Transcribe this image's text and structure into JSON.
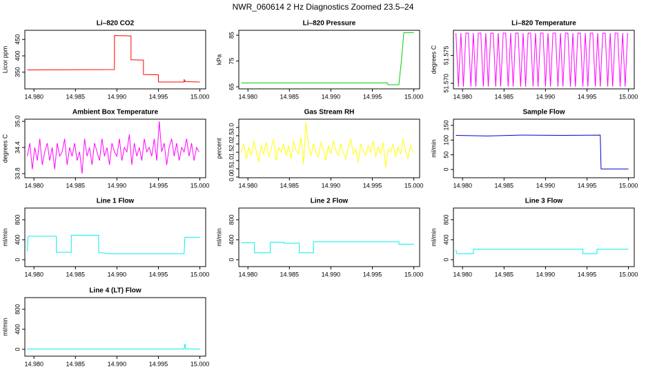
{
  "title": "NWR_060614  2 Hz Diagnostics Zoomed 23.5–24",
  "chart_data": [
    {
      "type": "line",
      "title": "Li–820 CO2",
      "ylabel": "Licor ppm",
      "xlim": [
        14.9789,
        15.0007
      ],
      "xticks": [
        {
          "value": 14.98,
          "label": "14.980"
        },
        14.985,
        {
          "value": 14.99,
          "label": "14.990"
        },
        14.995,
        {
          "value": 15,
          "label": "15.000"
        }
      ],
      "ylim": [
        299,
        478
      ],
      "yticks": [
        350,
        400,
        450
      ],
      "x": [
        14.9792,
        14.9897,
        14.9897,
        14.9917,
        14.9917,
        14.9932,
        14.9932,
        14.995,
        14.995,
        14.9981,
        14.9981,
        14.9982,
        14.9982,
        15.0
      ],
      "series": [
        {
          "color": "#ff0000",
          "values": [
            357,
            358,
            462,
            461,
            388,
            387,
            343,
            342,
            320,
            320,
            327,
            325,
            321,
            320
          ]
        }
      ]
    },
    {
      "type": "line",
      "title": "Li–820 Pressure",
      "ylabel": "kPa",
      "xlim": [
        14.9789,
        15.0007
      ],
      "xticks": [
        {
          "value": 14.98,
          "label": "14.980"
        },
        14.985,
        {
          "value": 14.99,
          "label": "14.990"
        },
        14.995,
        {
          "value": 15,
          "label": "15.000"
        }
      ],
      "ylim": [
        64.2,
        86.9
      ],
      "yticks": [
        65,
        75,
        85
      ],
      "x": [
        14.9792,
        14.9968,
        14.9969,
        14.9982,
        14.9985,
        14.9988,
        15.0
      ],
      "series": [
        {
          "color": "#00cc00",
          "values": [
            66.5,
            66.5,
            65.8,
            65.8,
            75,
            86,
            86
          ]
        }
      ]
    },
    {
      "type": "line",
      "title": "Li–820 Temperature",
      "ylabel": "degrees C",
      "xlim": [
        14.9789,
        15.0007
      ],
      "xticks": [
        {
          "value": 14.98,
          "label": "14.980"
        },
        14.985,
        {
          "value": 14.99,
          "label": "14.990"
        },
        14.995,
        {
          "value": 15,
          "label": "15.000"
        }
      ],
      "ylim": [
        51.569,
        51.5795
      ],
      "yticks": [
        {
          "value": 51.57,
          "label": "51.570"
        },
        51.575
      ],
      "x": [
        14.9792,
        14.9795,
        14.9798,
        14.9801,
        14.9804,
        14.9807,
        14.981,
        14.9813,
        14.9816,
        14.9819,
        14.9822,
        14.9825,
        14.9828,
        14.9831,
        14.9834,
        14.9837,
        14.984,
        14.9843,
        14.9846,
        14.9849,
        14.9852,
        14.9855,
        14.9858,
        14.9861,
        14.9864,
        14.9867,
        14.987,
        14.9873,
        14.9876,
        14.9879,
        14.9882,
        14.9885,
        14.9888,
        14.9891,
        14.9894,
        14.9897,
        14.99,
        14.9903,
        14.9906,
        14.9909,
        14.9912,
        14.9915,
        14.9918,
        14.9921,
        14.9924,
        14.9927,
        14.993,
        14.9933,
        14.9936,
        14.9939,
        14.9942,
        14.9945,
        14.9948,
        14.9951,
        14.9954,
        14.9957,
        14.996,
        14.9963,
        14.9966,
        14.9969,
        14.9972,
        14.9975,
        14.9978,
        14.9981,
        14.9984,
        14.9987,
        14.999,
        14.9993,
        14.9996,
        14.9999
      ],
      "series": [
        {
          "color": "#ff00ff",
          "values": [
            51.579,
            51.5694,
            51.579,
            51.5694,
            51.579,
            51.579,
            51.5694,
            51.579,
            51.5694,
            51.579,
            51.579,
            51.5694,
            51.579,
            51.5694,
            51.579,
            51.579,
            51.5694,
            51.579,
            51.5694,
            51.579,
            51.579,
            51.5694,
            51.579,
            51.5694,
            51.579,
            51.579,
            51.5694,
            51.579,
            51.5694,
            51.579,
            51.579,
            51.5694,
            51.579,
            51.5694,
            51.579,
            51.579,
            51.5694,
            51.579,
            51.5694,
            51.579,
            51.579,
            51.5694,
            51.579,
            51.5694,
            51.579,
            51.579,
            51.5694,
            51.579,
            51.5694,
            51.579,
            51.579,
            51.5694,
            51.579,
            51.5694,
            51.579,
            51.579,
            51.5694,
            51.579,
            51.5694,
            51.579,
            51.579,
            51.5694,
            51.579,
            51.5694,
            51.579,
            51.579,
            51.5694,
            51.579,
            51.5694,
            51.579
          ]
        }
      ]
    },
    {
      "type": "line",
      "title": "Ambient Box Temperature",
      "ylabel": "degrees C",
      "xlim": [
        14.9789,
        15.0007
      ],
      "xticks": [
        {
          "value": 14.98,
          "label": "14.980"
        },
        14.985,
        {
          "value": 14.99,
          "label": "14.990"
        },
        14.995,
        {
          "value": 15,
          "label": "15.000"
        }
      ],
      "ylim": [
        33.705,
        35.05
      ],
      "yticks": [
        33.8,
        34.4,
        {
          "value": 35,
          "label": "35.0"
        }
      ],
      "x": [
        14.9792,
        14.9795,
        14.9798,
        14.9801,
        14.9804,
        14.9807,
        14.981,
        14.9813,
        14.9816,
        14.9819,
        14.9822,
        14.9825,
        14.9828,
        14.9831,
        14.9834,
        14.9837,
        14.984,
        14.9843,
        14.9846,
        14.9849,
        14.9852,
        14.9855,
        14.9858,
        14.9861,
        14.9864,
        14.9867,
        14.987,
        14.9873,
        14.9876,
        14.9879,
        14.9882,
        14.9885,
        14.9888,
        14.9891,
        14.9894,
        14.9897,
        14.99,
        14.9903,
        14.9906,
        14.9909,
        14.9912,
        14.9915,
        14.9918,
        14.9921,
        14.9924,
        14.9927,
        14.993,
        14.9933,
        14.9936,
        14.9939,
        14.9942,
        14.9945,
        14.9948,
        14.9951,
        14.9954,
        14.9957,
        14.996,
        14.9963,
        14.9966,
        14.9969,
        14.9972,
        14.9975,
        14.9978,
        14.9981,
        14.9984,
        14.9987,
        14.999,
        14.9993,
        14.9996,
        14.9999
      ],
      "series": [
        {
          "color": "#ff00ff",
          "values": [
            34.2,
            34.5,
            33.9,
            34.4,
            34.1,
            34.6,
            34.0,
            34.3,
            34.5,
            34.1,
            34.4,
            33.9,
            34.5,
            34.2,
            34.3,
            34.6,
            34.0,
            34.4,
            34.2,
            34.5,
            34.1,
            34.3,
            33.8,
            34.6,
            34.2,
            34.4,
            34.0,
            34.5,
            34.3,
            34.1,
            34.6,
            34.2,
            34.4,
            34.0,
            34.5,
            34.3,
            34.2,
            34.6,
            34.1,
            34.4,
            34.3,
            34.7,
            34.0,
            34.5,
            34.2,
            34.4,
            34.1,
            34.6,
            34.3,
            34.4,
            34.2,
            34.6,
            34.1,
            35.0,
            34.3,
            34.5,
            34.0,
            34.4,
            34.6,
            34.2,
            34.5,
            34.1,
            34.4,
            34.3,
            34.6,
            34.2,
            34.5,
            34.1,
            34.4,
            34.3
          ]
        }
      ]
    },
    {
      "type": "line",
      "title": "Gas Stream RH",
      "ylabel": "percent",
      "xlim": [
        14.9789,
        15.0007
      ],
      "xticks": [
        {
          "value": 14.98,
          "label": "14.980"
        },
        14.985,
        {
          "value": 14.99,
          "label": "14.990"
        },
        14.995,
        {
          "value": 15,
          "label": "15.000"
        }
      ],
      "ylim": [
        -0.04,
        3.5
      ],
      "yticks": [
        {
          "value": 0,
          "label": "0.0"
        },
        0.5,
        {
          "value": 1,
          "label": "1.0"
        },
        1.5,
        {
          "value": 2,
          "label": "2.0"
        },
        2.5,
        {
          "value": 3,
          "label": "3.0"
        }
      ],
      "x": [
        14.9792,
        14.9795,
        14.9798,
        14.9801,
        14.9804,
        14.9807,
        14.981,
        14.9813,
        14.9816,
        14.9819,
        14.9822,
        14.9825,
        14.9828,
        14.9831,
        14.9834,
        14.9837,
        14.984,
        14.9843,
        14.9846,
        14.9849,
        14.9852,
        14.9855,
        14.9858,
        14.9861,
        14.9864,
        14.9867,
        14.987,
        14.9873,
        14.9876,
        14.9879,
        14.9882,
        14.9885,
        14.9888,
        14.9891,
        14.9894,
        14.9897,
        14.99,
        14.9903,
        14.9906,
        14.9909,
        14.9912,
        14.9915,
        14.9918,
        14.9921,
        14.9924,
        14.9927,
        14.993,
        14.9933,
        14.9936,
        14.9939,
        14.9942,
        14.9945,
        14.9948,
        14.9951,
        14.9954,
        14.9957,
        14.996,
        14.9963,
        14.9966,
        14.9969,
        14.9972,
        14.9975,
        14.9978,
        14.9981,
        14.9984,
        14.9987,
        14.999,
        14.9993,
        14.9996,
        14.9999
      ],
      "series": [
        {
          "color": "#ffff00",
          "values": [
            1.5,
            2.0,
            1.1,
            1.8,
            1.3,
            2.2,
            1.6,
            0.9,
            1.9,
            1.4,
            2.1,
            1.2,
            1.7,
            2.3,
            1.0,
            1.8,
            1.5,
            2.0,
            1.3,
            1.9,
            1.1,
            2.2,
            1.6,
            1.4,
            2.4,
            0.8,
            3.3,
            1.9,
            1.3,
            2.0,
            1.5,
            1.2,
            2.1,
            1.7,
            1.0,
            1.9,
            1.4,
            2.2,
            1.6,
            1.3,
            2.0,
            1.5,
            1.1,
            1.8,
            2.3,
            1.4,
            1.7,
            0.9,
            2.0,
            1.6,
            1.3,
            1.9,
            1.5,
            2.2,
            1.2,
            1.8,
            1.4,
            2.1,
            0.6,
            1.7,
            1.5,
            2.0,
            1.2,
            1.8,
            1.4,
            2.3,
            1.6,
            1.1,
            1.9,
            1.5
          ]
        }
      ]
    },
    {
      "type": "line",
      "title": "Sample Flow",
      "ylabel": "ml/min",
      "xlim": [
        14.9789,
        15.0007
      ],
      "xticks": [
        {
          "value": 14.98,
          "label": "14.980"
        },
        14.985,
        {
          "value": 14.99,
          "label": "14.990"
        },
        14.995,
        {
          "value": 15,
          "label": "15.000"
        }
      ],
      "ylim": [
        -28,
        171
      ],
      "yticks": [
        0,
        50,
        100,
        150
      ],
      "x": [
        14.9792,
        14.983,
        14.987,
        14.992,
        14.9966,
        14.9967,
        15.0
      ],
      "series": [
        {
          "color": "#0000cc",
          "values": [
            116,
            114,
            117,
            116,
            117,
            2,
            2
          ]
        }
      ]
    },
    {
      "type": "line",
      "title": "Line 1 Flow",
      "ylabel": "ml/min",
      "xlim": [
        14.9789,
        15.0007
      ],
      "xticks": [
        {
          "value": 14.98,
          "label": "14.980"
        },
        14.985,
        {
          "value": 14.99,
          "label": "14.990"
        },
        14.995,
        {
          "value": 15,
          "label": "15.000"
        }
      ],
      "ylim": [
        -138,
        1034
      ],
      "yticks": [
        0,
        400,
        800
      ],
      "x": [
        14.9792,
        14.9793,
        14.9827,
        14.9827,
        14.9845,
        14.9845,
        14.9878,
        14.9878,
        14.9888,
        14.9981,
        14.9982,
        15.0
      ],
      "series": [
        {
          "color": "#00eeee",
          "values": [
            170,
            470,
            470,
            150,
            150,
            490,
            490,
            150,
            120,
            120,
            450,
            450
          ]
        }
      ]
    },
    {
      "type": "line",
      "title": "Line 2 Flow",
      "ylabel": "ml/min",
      "xlim": [
        14.9789,
        15.0007
      ],
      "xticks": [
        {
          "value": 14.98,
          "label": "14.980"
        },
        14.985,
        {
          "value": 14.99,
          "label": "14.990"
        },
        14.995,
        {
          "value": 15,
          "label": "15.000"
        }
      ],
      "ylim": [
        -138,
        1034
      ],
      "yticks": [
        0,
        400,
        800
      ],
      "x": [
        14.9792,
        14.9808,
        14.9808,
        14.9827,
        14.9827,
        14.9843,
        14.9843,
        14.9862,
        14.9862,
        14.9879,
        14.9879,
        14.9982,
        14.9982,
        15.0
      ],
      "series": [
        {
          "color": "#00eeee",
          "values": [
            340,
            340,
            140,
            140,
            350,
            350,
            330,
            330,
            140,
            140,
            360,
            360,
            310,
            310
          ]
        }
      ]
    },
    {
      "type": "line",
      "title": "Line 3 Flow",
      "ylabel": "ml/min",
      "xlim": [
        14.9789,
        15.0007
      ],
      "xticks": [
        {
          "value": 14.98,
          "label": "14.980"
        },
        14.985,
        {
          "value": 14.99,
          "label": "14.990"
        },
        14.995,
        {
          "value": 15,
          "label": "15.000"
        }
      ],
      "ylim": [
        -138,
        1034
      ],
      "yticks": [
        0,
        400,
        800
      ],
      "x": [
        14.9792,
        14.9793,
        14.9813,
        14.9813,
        14.9945,
        14.9945,
        14.9962,
        14.9962,
        15.0
      ],
      "series": [
        {
          "color": "#00eeee",
          "values": [
            200,
            120,
            120,
            210,
            210,
            120,
            120,
            210,
            210
          ]
        }
      ]
    },
    {
      "type": "line",
      "title": "Line 4 (LT) Flow",
      "ylabel": "ml/min",
      "xlim": [
        14.9789,
        15.0007
      ],
      "xticks": [
        {
          "value": 14.98,
          "label": "14.980"
        },
        14.985,
        {
          "value": 14.99,
          "label": "14.990"
        },
        14.995,
        {
          "value": 15,
          "label": "15.000"
        }
      ],
      "ylim": [
        -138,
        1034
      ],
      "yticks": [
        0,
        400,
        800
      ],
      "x": [
        14.9792,
        14.9981,
        14.9982,
        14.9983,
        15.0
      ],
      "series": [
        {
          "color": "#00eeee",
          "values": [
            5,
            5,
            110,
            5,
            5
          ]
        }
      ]
    }
  ]
}
